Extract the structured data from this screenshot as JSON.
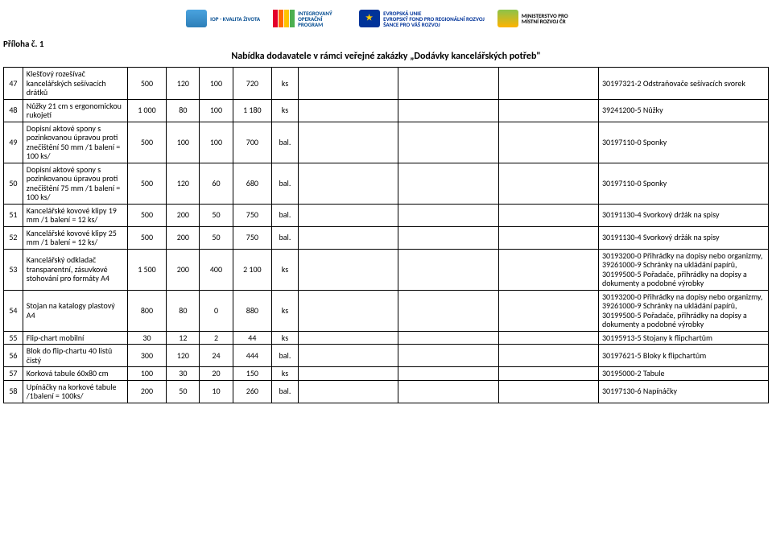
{
  "header": {
    "title": "Příloha č. 1",
    "subtitle": "Nabídka dodavatele v rámci veřejné zakázky „Dodávky kancelářských potřeb\""
  },
  "logos": {
    "iop": "IOP - KVALITA ŽIVOTA",
    "int": "INTEGROVANÝ OPERAČNÍ PROGRAM",
    "eu1": "EVROPSKÁ UNIE",
    "eu2": "EVROPSKÝ FOND PRO REGIONÁLNÍ ROZVOJ",
    "eu3": "ŠANCE PRO VÁŠ ROZVOJ",
    "mmr": "MINISTERSTVO PRO MÍSTNÍ ROZVOJ ČR"
  },
  "rows": [
    {
      "idx": "47",
      "desc": "Klešťový rozešívač kancelářských sešívacích drátků",
      "c1": "500",
      "c2": "120",
      "c3": "100",
      "c4": "720",
      "unit": "ks",
      "code": "30197321-2 Odstraňovače sešívacích svorek"
    },
    {
      "idx": "48",
      "desc": "Nůžky 21 cm s ergonomickou rukojetí",
      "c1": "1 000",
      "c2": "80",
      "c3": "100",
      "c4": "1 180",
      "unit": "ks",
      "code": "39241200-5 Nůžky"
    },
    {
      "idx": "49",
      "desc": "Dopisní  aktové spony s pozinkovanou úpravou proti znečištění  50 mm /1 balení = 100 ks/",
      "c1": "500",
      "c2": "100",
      "c3": "100",
      "c4": "700",
      "unit": "bal.",
      "code": "30197110-0 Sponky"
    },
    {
      "idx": "50",
      "desc": "Dopisní aktové spony s pozinkovanou úpravou proti znečištění  75 mm /1 balení = 100 ks/",
      "c1": "500",
      "c2": "120",
      "c3": "60",
      "c4": "680",
      "unit": "bal.",
      "code": "30197110-0 Sponky"
    },
    {
      "idx": "51",
      "desc": "Kancelářské kovové klipy 19 mm /1 balení = 12 ks/",
      "c1": "500",
      "c2": "200",
      "c3": "50",
      "c4": "750",
      "unit": "bal.",
      "code": "30191130-4 Svorkový držák na spisy"
    },
    {
      "idx": "52",
      "desc": "Kancelářské kovové klipy  25 mm /1 balení = 12 ks/",
      "c1": "500",
      "c2": "200",
      "c3": "50",
      "c4": "750",
      "unit": "bal.",
      "code": "30191130-4 Svorkový držák na spisy"
    },
    {
      "idx": "53",
      "desc": "Kancelářský odkladač transparentní, zásuvkové stohování pro formáty A4",
      "c1": "1 500",
      "c2": "200",
      "c3": "400",
      "c4": "2 100",
      "unit": "ks",
      "code": "30193200-0 Přihrádky na dopisy nebo organizmy, 39261000-9 Schránky na ukládání papírů, 30199500-5 Pořadače, přihrádky na dopisy a dokumenty a podobné výrobky"
    },
    {
      "idx": "54",
      "desc": "Stojan na katalogy plastový A4",
      "c1": "800",
      "c2": "80",
      "c3": "0",
      "c4": "880",
      "unit": "ks",
      "code": "30193200-0 Přihrádky na dopisy nebo organizmy, 39261000-9 Schránky na ukládání papírů, 30199500-5 Pořadače, přihrádky na dopisy a dokumenty a podobné výrobky"
    },
    {
      "idx": "55",
      "desc": "Flip-chart mobilní",
      "c1": "30",
      "c2": "12",
      "c3": "2",
      "c4": "44",
      "unit": "ks",
      "code": "30195913-5 Stojany k flipchartům"
    },
    {
      "idx": "56",
      "desc": "Blok do flip-chartu 40 listů čistý",
      "c1": "300",
      "c2": "120",
      "c3": "24",
      "c4": "444",
      "unit": "bal.",
      "code": "30197621-5 Bloky k flipchartům"
    },
    {
      "idx": "57",
      "desc": "Korková tabule 60x80 cm",
      "c1": "100",
      "c2": "30",
      "c3": "20",
      "c4": "150",
      "unit": "ks",
      "code": "30195000-2 Tabule"
    },
    {
      "idx": "58",
      "desc": "Upínáčky na korkové tabule /1balení = 100ks/",
      "c1": "200",
      "c2": "50",
      "c3": "10",
      "c4": "260",
      "unit": "bal.",
      "code": "30197130-6 Napínáčky"
    }
  ]
}
